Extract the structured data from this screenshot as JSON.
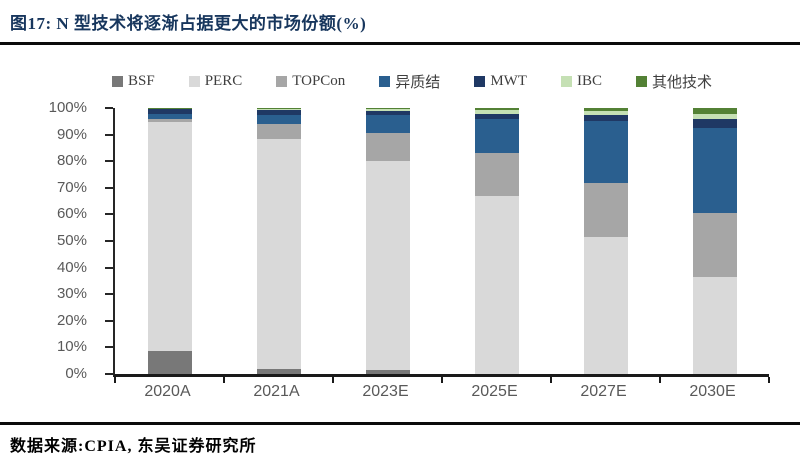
{
  "header": {
    "title": "图17:  N 型技术将逐渐占据更大的市场份额(%)"
  },
  "footer": {
    "source_label": "数据来源:CPIA, 东吴证券研究所"
  },
  "colors": {
    "title_text": "#17365D",
    "rule_line": "#0b0b0b",
    "axis_line": "#262626",
    "axis_text": "#595959",
    "legend_text": "#3f3f3f",
    "background": "#ffffff"
  },
  "chart_data": {
    "type": "bar",
    "stacked": true,
    "unit": "%",
    "title": "N 型技术将逐渐占据更大的市场份额(%)",
    "xlabel": "",
    "ylabel": "",
    "ylim": [
      0,
      100
    ],
    "grid": false,
    "legend_position": "top",
    "yticks": [
      "100%",
      "90%",
      "80%",
      "70%",
      "60%",
      "50%",
      "40%",
      "30%",
      "20%",
      "10%",
      "0%"
    ],
    "categories": [
      "2020A",
      "2021A",
      "2023E",
      "2025E",
      "2027E",
      "2030E"
    ],
    "series": [
      {
        "name": "BSF",
        "color": "#787878",
        "values": [
          8.8,
          2.0,
          1.5,
          0.0,
          0.0,
          0.0
        ]
      },
      {
        "name": "PERC",
        "color": "#D9D9D9",
        "values": [
          86.0,
          86.3,
          78.5,
          67.0,
          51.5,
          36.5
        ]
      },
      {
        "name": "TOPCon",
        "color": "#A6A6A6",
        "values": [
          1.2,
          5.7,
          10.5,
          16.0,
          20.5,
          24.0
        ]
      },
      {
        "name": "异质结",
        "color": "#2A5F8F",
        "values": [
          1.8,
          3.2,
          7.0,
          13.0,
          23.0,
          32.0
        ]
      },
      {
        "name": "MWT",
        "color": "#1F3864",
        "values": [
          1.8,
          2.0,
          1.5,
          1.8,
          2.5,
          3.3
        ]
      },
      {
        "name": "IBC",
        "color": "#C5E0B4",
        "values": [
          0.2,
          0.5,
          0.6,
          1.4,
          1.3,
          2.1
        ]
      },
      {
        "name": "其他技术",
        "color": "#538135",
        "values": [
          0.2,
          0.3,
          0.4,
          0.8,
          1.2,
          2.1
        ]
      }
    ]
  }
}
